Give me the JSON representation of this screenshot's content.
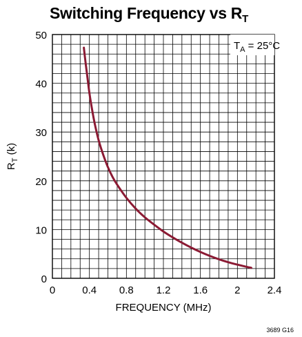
{
  "chart_data": {
    "type": "line",
    "title": "Switching Frequency vs R",
    "title_subscript": "T",
    "xlabel": "FREQUENCY (MHz)",
    "ylabel": "R",
    "ylabel_subscript": "T",
    "ylabel_unit": " (k)",
    "xlim": [
      0,
      2.4
    ],
    "ylim": [
      0,
      50
    ],
    "x_ticks": [
      0,
      0.4,
      0.8,
      1.2,
      1.6,
      2,
      2.4
    ],
    "x_tick_labels": [
      "0",
      "0.4",
      "0.8",
      "1.2",
      "1.6",
      "2",
      "2.4"
    ],
    "y_ticks": [
      0,
      10,
      20,
      30,
      40,
      50
    ],
    "y_tick_labels": [
      "0",
      "10",
      "20",
      "30",
      "40",
      "50"
    ],
    "grid": true,
    "annotation": {
      "prefix": "T",
      "subscript": "A",
      "suffix": " = 25°C",
      "position": "top-right"
    },
    "series": [
      {
        "color": "#8b1a33",
        "points": [
          [
            0.34,
            47.3
          ],
          [
            0.36,
            44.0
          ],
          [
            0.38,
            41.0
          ],
          [
            0.4,
            38.0
          ],
          [
            0.43,
            34.5
          ],
          [
            0.46,
            31.5
          ],
          [
            0.5,
            28.3
          ],
          [
            0.55,
            25.3
          ],
          [
            0.6,
            22.8
          ],
          [
            0.65,
            20.8
          ],
          [
            0.7,
            19.2
          ],
          [
            0.8,
            16.5
          ],
          [
            0.9,
            14.3
          ],
          [
            1.0,
            12.5
          ],
          [
            1.1,
            11.0
          ],
          [
            1.2,
            9.6
          ],
          [
            1.3,
            8.4
          ],
          [
            1.4,
            7.3
          ],
          [
            1.5,
            6.3
          ],
          [
            1.6,
            5.4
          ],
          [
            1.7,
            4.6
          ],
          [
            1.8,
            3.9
          ],
          [
            1.9,
            3.3
          ],
          [
            2.0,
            2.8
          ],
          [
            2.1,
            2.35
          ],
          [
            2.15,
            2.15
          ]
        ]
      }
    ]
  },
  "figure_id": "3689 G16"
}
